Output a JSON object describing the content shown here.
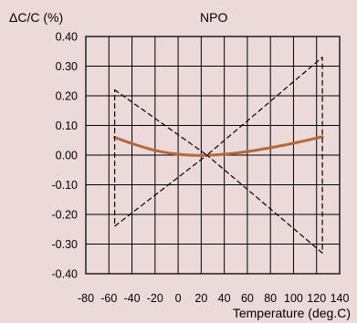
{
  "chart_data": {
    "type": "line",
    "title": "NPO",
    "ylabel": "ΔC/C (%)",
    "xlabel": "Temperature (deg.C)",
    "xlim": [
      -80,
      140
    ],
    "ylim": [
      -0.4,
      0.4
    ],
    "x_ticks": [
      -80,
      -60,
      -40,
      -20,
      0,
      20,
      40,
      60,
      80,
      100,
      120,
      140
    ],
    "x_tick_labels": [
      "-80",
      "-60",
      "-40",
      "-20",
      "0",
      "20",
      "40",
      "60",
      "80",
      "100",
      "120",
      "140"
    ],
    "y_ticks": [
      0.4,
      0.3,
      0.2,
      0.1,
      0.0,
      -0.1,
      -0.2,
      -0.3,
      -0.4
    ],
    "y_tick_labels": [
      "0.40",
      "0.30",
      "0.20",
      "0.10",
      "0.00",
      "-0.10",
      "-0.20",
      "-0.30",
      "-0.40"
    ],
    "grid": true,
    "series": [
      {
        "style": "solid",
        "color": "#b5683a",
        "x": [
          -55,
          -40,
          -20,
          0,
          20,
          40,
          60,
          80,
          100,
          125
        ],
        "y": [
          0.06,
          0.039,
          0.016,
          0.003,
          -0.001,
          0.003,
          0.012,
          0.025,
          0.04,
          0.062
        ]
      },
      {
        "style": "dashed",
        "color": "#000000",
        "x": [
          -55,
          25,
          125,
          125,
          25,
          -55,
          -55
        ],
        "y": [
          0.22,
          0.0,
          0.33,
          -0.33,
          0.0,
          -0.24,
          0.22
        ]
      }
    ]
  }
}
